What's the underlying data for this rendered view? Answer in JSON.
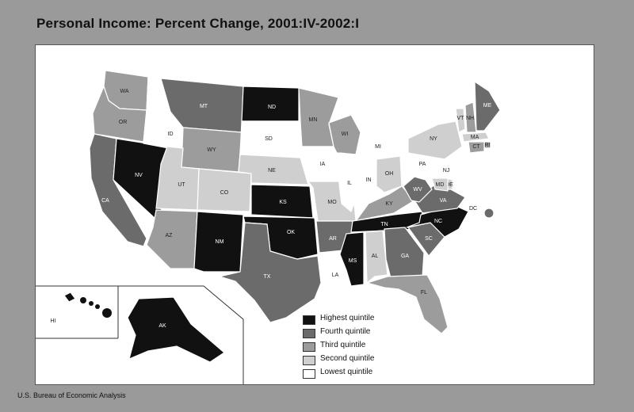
{
  "title": "Personal Income: Percent Change, 2001:IV-2002:I",
  "source": "U.S. Bureau of Economic Analysis",
  "colors": {
    "highest": "#111111",
    "fourth": "#6b6b6b",
    "third": "#9c9c9c",
    "second": "#cfcfcf",
    "lowest": "#ffffff"
  },
  "legend": [
    {
      "key": "highest",
      "label": "Highest quintile"
    },
    {
      "key": "fourth",
      "label": "Fourth quintile"
    },
    {
      "key": "third",
      "label": "Third quintile"
    },
    {
      "key": "second",
      "label": "Second quintile"
    },
    {
      "key": "lowest",
      "label": "Lowest quintile"
    }
  ],
  "states": {
    "WA": "third",
    "OR": "third",
    "CA": "fourth",
    "NV": "highest",
    "ID": "lowest",
    "MT": "fourth",
    "WY": "third",
    "UT": "second",
    "AZ": "third",
    "CO": "second",
    "NM": "highest",
    "ND": "highest",
    "SD": "lowest",
    "NE": "second",
    "KS": "highest",
    "OK": "highest",
    "TX": "fourth",
    "MN": "third",
    "IA": "lowest",
    "MO": "second",
    "AR": "fourth",
    "LA": "lowest",
    "WI": "third",
    "IL": "lowest",
    "MI": "lowest",
    "IN": "lowest",
    "OH": "second",
    "KY": "third",
    "TN": "highest",
    "MS": "highest",
    "AL": "second",
    "GA": "fourth",
    "FL": "third",
    "SC": "fourth",
    "NC": "highest",
    "VA": "fourth",
    "WV": "fourth",
    "PA": "lowest",
    "NY": "second",
    "VT": "second",
    "NH": "third",
    "ME": "fourth",
    "MA": "second",
    "RI": "third",
    "CT": "third",
    "NJ": "lowest",
    "DE": "second",
    "MD": "second",
    "DC": "fourth",
    "AK": "highest",
    "HI": "highest"
  }
}
